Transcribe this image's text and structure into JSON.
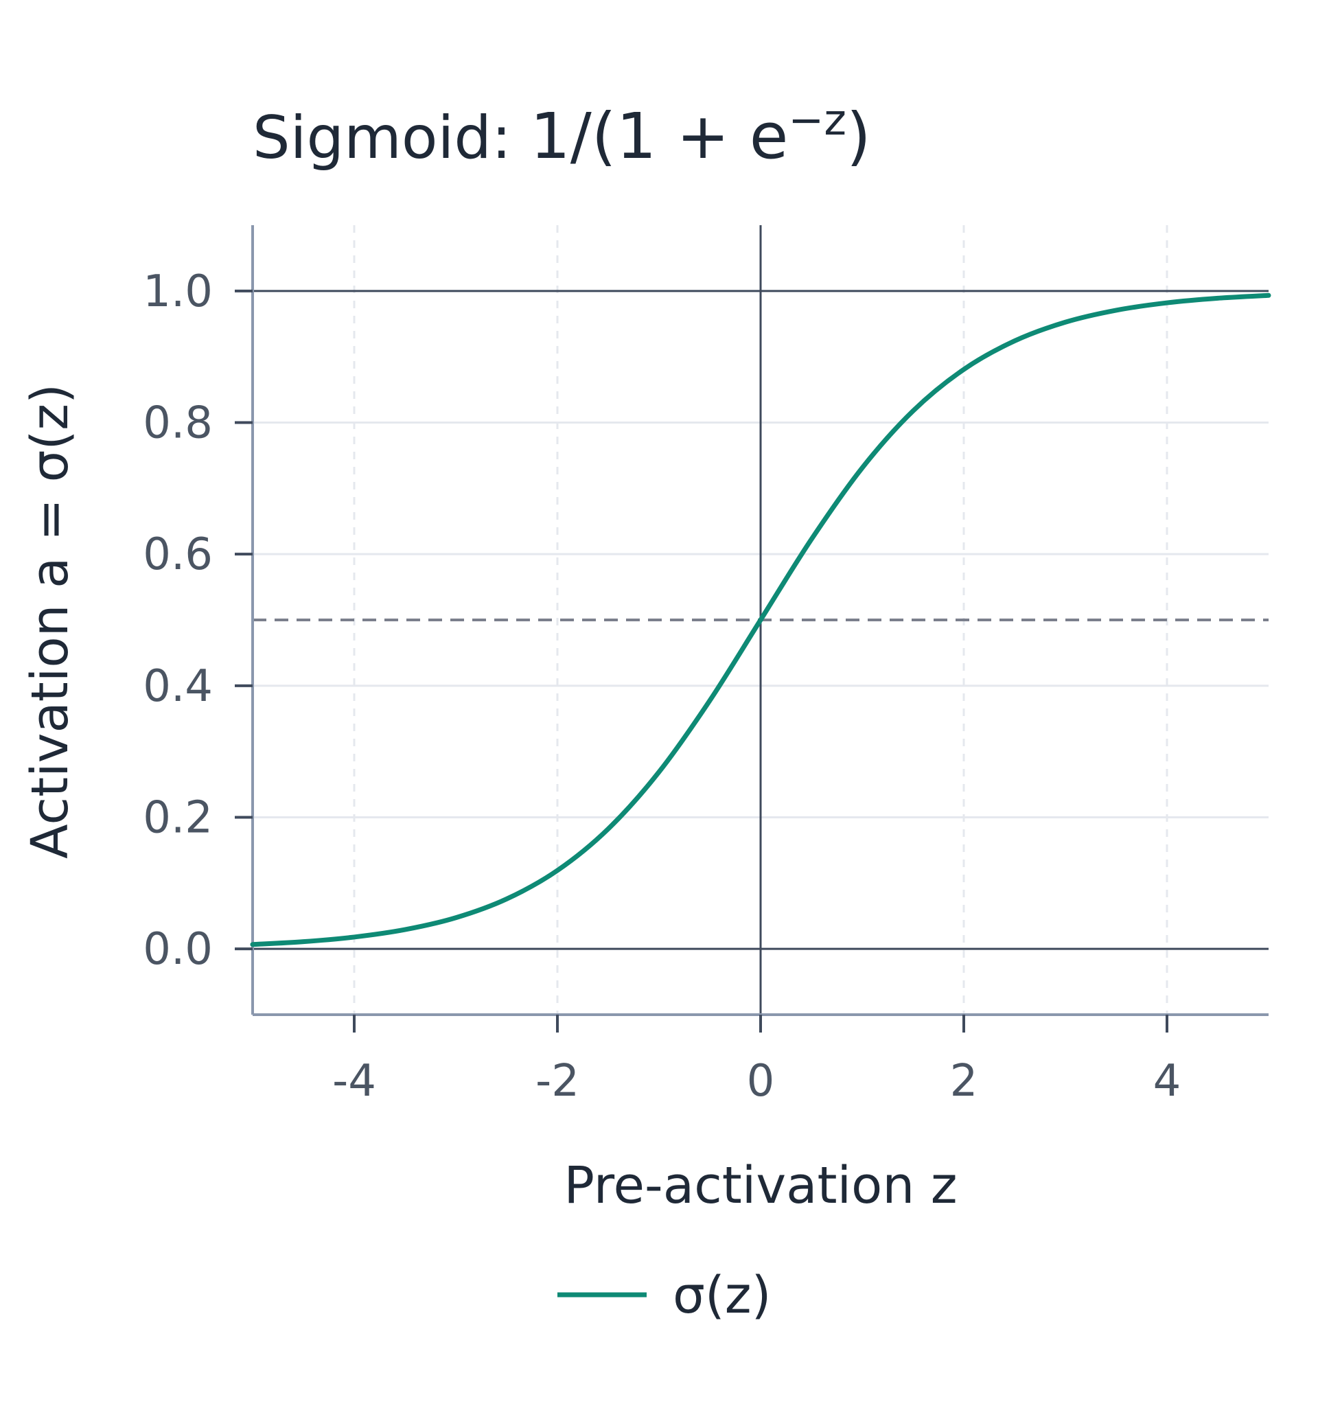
{
  "chart_data": {
    "type": "line",
    "title": {
      "prefix": "Sigmoid: ",
      "formula": "1/(1 + e",
      "superscript": "−z",
      "suffix": ")"
    },
    "xlabel": "Pre-activation z",
    "ylabel": "Activation a = σ(z)",
    "xlim": [
      -5,
      5
    ],
    "ylim": [
      -0.1,
      1.1
    ],
    "xticks": [
      -4,
      -2,
      0,
      2,
      4
    ],
    "xtick_labels": [
      "-4",
      "-2",
      "0",
      "2",
      "4"
    ],
    "yticks": [
      0.0,
      0.2,
      0.4,
      0.6,
      0.8,
      1.0
    ],
    "ytick_labels": [
      "0.0",
      "0.2",
      "0.4",
      "0.6",
      "0.8",
      "1.0"
    ],
    "grid": true,
    "reference_lines": {
      "horizontal": [
        0.0,
        1.0
      ],
      "vertical": [
        0.0
      ],
      "dashed_horizontal": [
        0.5
      ]
    },
    "legend_placement": "bottom-center",
    "series": [
      {
        "name": "σ(z)",
        "color": "#0e8a75",
        "x": [
          -5.0,
          -4.5,
          -4.0,
          -3.5,
          -3.0,
          -2.5,
          -2.0,
          -1.5,
          -1.0,
          -0.5,
          0.0,
          0.5,
          1.0,
          1.5,
          2.0,
          2.5,
          3.0,
          3.5,
          4.0,
          4.5,
          5.0
        ],
        "y": [
          0.0067,
          0.011,
          0.018,
          0.0293,
          0.0474,
          0.0759,
          0.1192,
          0.1824,
          0.2689,
          0.3775,
          0.5,
          0.6225,
          0.7311,
          0.8176,
          0.8808,
          0.9241,
          0.9526,
          0.9707,
          0.982,
          0.989,
          0.9933
        ]
      }
    ]
  },
  "colors": {
    "curve": "#0e8a75",
    "axis": "#8a97ad",
    "reference": "#3f4a5c",
    "grid": "#e5e8ee",
    "dashed": "#7b7f8c"
  }
}
